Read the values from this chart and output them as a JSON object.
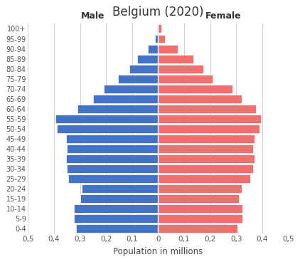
{
  "title": "Belgium (2020)",
  "age_groups": [
    "0-4",
    "5-9",
    "10-14",
    "15-19",
    "20-24",
    "25-29",
    "30-34",
    "35-39",
    "40-44",
    "45-49",
    "50-54",
    "55-59",
    "60-64",
    "65-69",
    "70-74",
    "75-79",
    "80-84",
    "85-89",
    "90-94",
    "95-99",
    "100+"
  ],
  "male": [
    0.315,
    0.325,
    0.325,
    0.3,
    0.295,
    0.345,
    0.35,
    0.355,
    0.35,
    0.355,
    0.39,
    0.395,
    0.31,
    0.25,
    0.21,
    0.155,
    0.11,
    0.08,
    0.04,
    0.012,
    0.003
  ],
  "female": [
    0.305,
    0.325,
    0.325,
    0.31,
    0.32,
    0.355,
    0.365,
    0.37,
    0.365,
    0.37,
    0.39,
    0.395,
    0.375,
    0.32,
    0.285,
    0.21,
    0.175,
    0.135,
    0.075,
    0.025,
    0.012
  ],
  "male_color": "#4472C4",
  "female_color": "#F07070",
  "xlabel": "Population in millions",
  "xlim": 0.5,
  "male_label": "Male",
  "female_label": "Female",
  "xtick_positions": [
    -0.5,
    -0.4,
    -0.3,
    -0.2,
    -0.1,
    0.0,
    0.1,
    0.2,
    0.3,
    0.4,
    0.5
  ],
  "xtick_labels": [
    "0,5",
    "0,4",
    "0,3",
    "0,2",
    "0,1",
    "0",
    "0,1",
    "0,2",
    "0,3",
    "0,4",
    "0,5"
  ],
  "background_color": "#ffffff",
  "grid_color": "#d0d0d0"
}
